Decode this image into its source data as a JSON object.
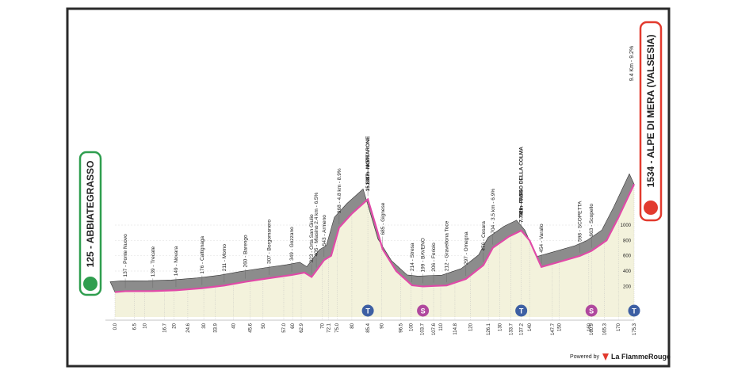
{
  "chart_data": {
    "type": "area",
    "start": "125 - ABBIATEGRASSO",
    "finish": "1534 - ALPE DI MERA (VALSESIA)",
    "finish_climb": "9.4 Km - 9.2%",
    "x": [
      0,
      3.5,
      12.8,
      20.6,
      29.4,
      36.9,
      44,
      52,
      59.7,
      64,
      66.4,
      68,
      70.6,
      73,
      75.7,
      80,
      85.4,
      88,
      90.4,
      95,
      100.3,
      104,
      107.6,
      112,
      118.5,
      124.4,
      127.6,
      133,
      137.2,
      140,
      144,
      150,
      157,
      160.9,
      166,
      170,
      175.3
    ],
    "values": [
      125,
      137,
      139,
      149,
      176,
      211,
      260,
      307,
      349,
      380,
      323,
      405,
      543,
      600,
      968,
      1150,
      1337,
      1000,
      685,
      400,
      214,
      199,
      206,
      212,
      297,
      476,
      704,
      850,
      929,
      800,
      454,
      520,
      598,
      663,
      800,
      1100,
      1534
    ],
    "xlim": [
      0,
      175.3
    ],
    "ylim": [
      -200,
      1600
    ],
    "yticks": [
      200,
      400,
      600,
      800,
      1000
    ],
    "xticks": [
      {
        "value": 0,
        "label": "0.0"
      },
      6.5,
      10,
      16.7,
      20,
      24.6,
      30,
      33.9,
      40,
      45.6,
      50,
      {
        "value": 57,
        "label": "57.0"
      },
      60,
      62.9,
      70,
      72.1,
      {
        "value": 75,
        "label": "75.0"
      },
      80,
      85.4,
      90,
      96.5,
      100,
      103.7,
      107.6,
      110,
      114.8,
      120,
      126.1,
      130,
      133.7,
      137.2,
      140,
      147.7,
      150,
      160,
      160.9,
      165.3,
      170,
      175.3
    ],
    "places": [
      {
        "x": 3.5,
        "label": "137 - Ponte Nuovo"
      },
      {
        "x": 12.8,
        "label": "139 - Trecate"
      },
      {
        "x": 20.6,
        "label": "149 - Novara"
      },
      {
        "x": 29.4,
        "label": "176 - Caltignaga"
      },
      {
        "x": 36.9,
        "label": "211 - Momo"
      },
      {
        "x": 44,
        "label": "260 - Barengo"
      },
      {
        "x": 52,
        "label": "307 - Borgomanero"
      },
      {
        "x": 59.7,
        "label": "349 - Gozzano"
      },
      {
        "x": 66.4,
        "label": "323 - Orta San Giulio"
      },
      {
        "x": 68,
        "label": "405 - Miasino 2.4 km - 6.5%"
      },
      {
        "x": 70.6,
        "label": "543 - Armeno"
      },
      {
        "x": 75.7,
        "label": "968 - 4.8 km - 8.9%"
      },
      {
        "x": 85.4,
        "label": "1337 - MOTTARONE",
        "sub": "15.6 Km - 6.5%"
      },
      {
        "x": 90.4,
        "label": "685 - Gignese"
      },
      {
        "x": 100.3,
        "label": "214 - Stresa"
      },
      {
        "x": 104,
        "label": "199 - BAVENO"
      },
      {
        "x": 107.6,
        "label": "206 - Feriolo"
      },
      {
        "x": 112,
        "label": "212 - Gravellona Toce"
      },
      {
        "x": 118.5,
        "label": "297 - Omegna"
      },
      {
        "x": 124.4,
        "label": "476 - Cesara"
      },
      {
        "x": 127.6,
        "label": "704 - 3.5 km - 6.9%"
      },
      {
        "x": 137.2,
        "label": "929 - PASSO DELLA COLMA",
        "sub": "7.7 Km - 6.0%"
      },
      {
        "x": 144,
        "label": "454 - Varallo"
      },
      {
        "x": 157,
        "label": "598 - SCOPETTA"
      },
      {
        "x": 160.9,
        "label": "663 - Scopello"
      }
    ],
    "markers": [
      {
        "x": 85.4,
        "label": "T",
        "color": "#3d5fa3"
      },
      {
        "x": 104,
        "label": "S",
        "color": "#b0489e"
      },
      {
        "x": 137.2,
        "label": "T",
        "color": "#3d5fa3"
      },
      {
        "x": 160.9,
        "label": "S",
        "color": "#b0489e"
      },
      {
        "x": 175.3,
        "label": "T",
        "color": "#3d5fa3"
      }
    ],
    "line_color": "#e04aa8",
    "band_color": "#8c8c8c",
    "fill_color": "#f3f2dc"
  },
  "footer": {
    "powered": "Powered by",
    "brand": "La FlammeRouge"
  }
}
